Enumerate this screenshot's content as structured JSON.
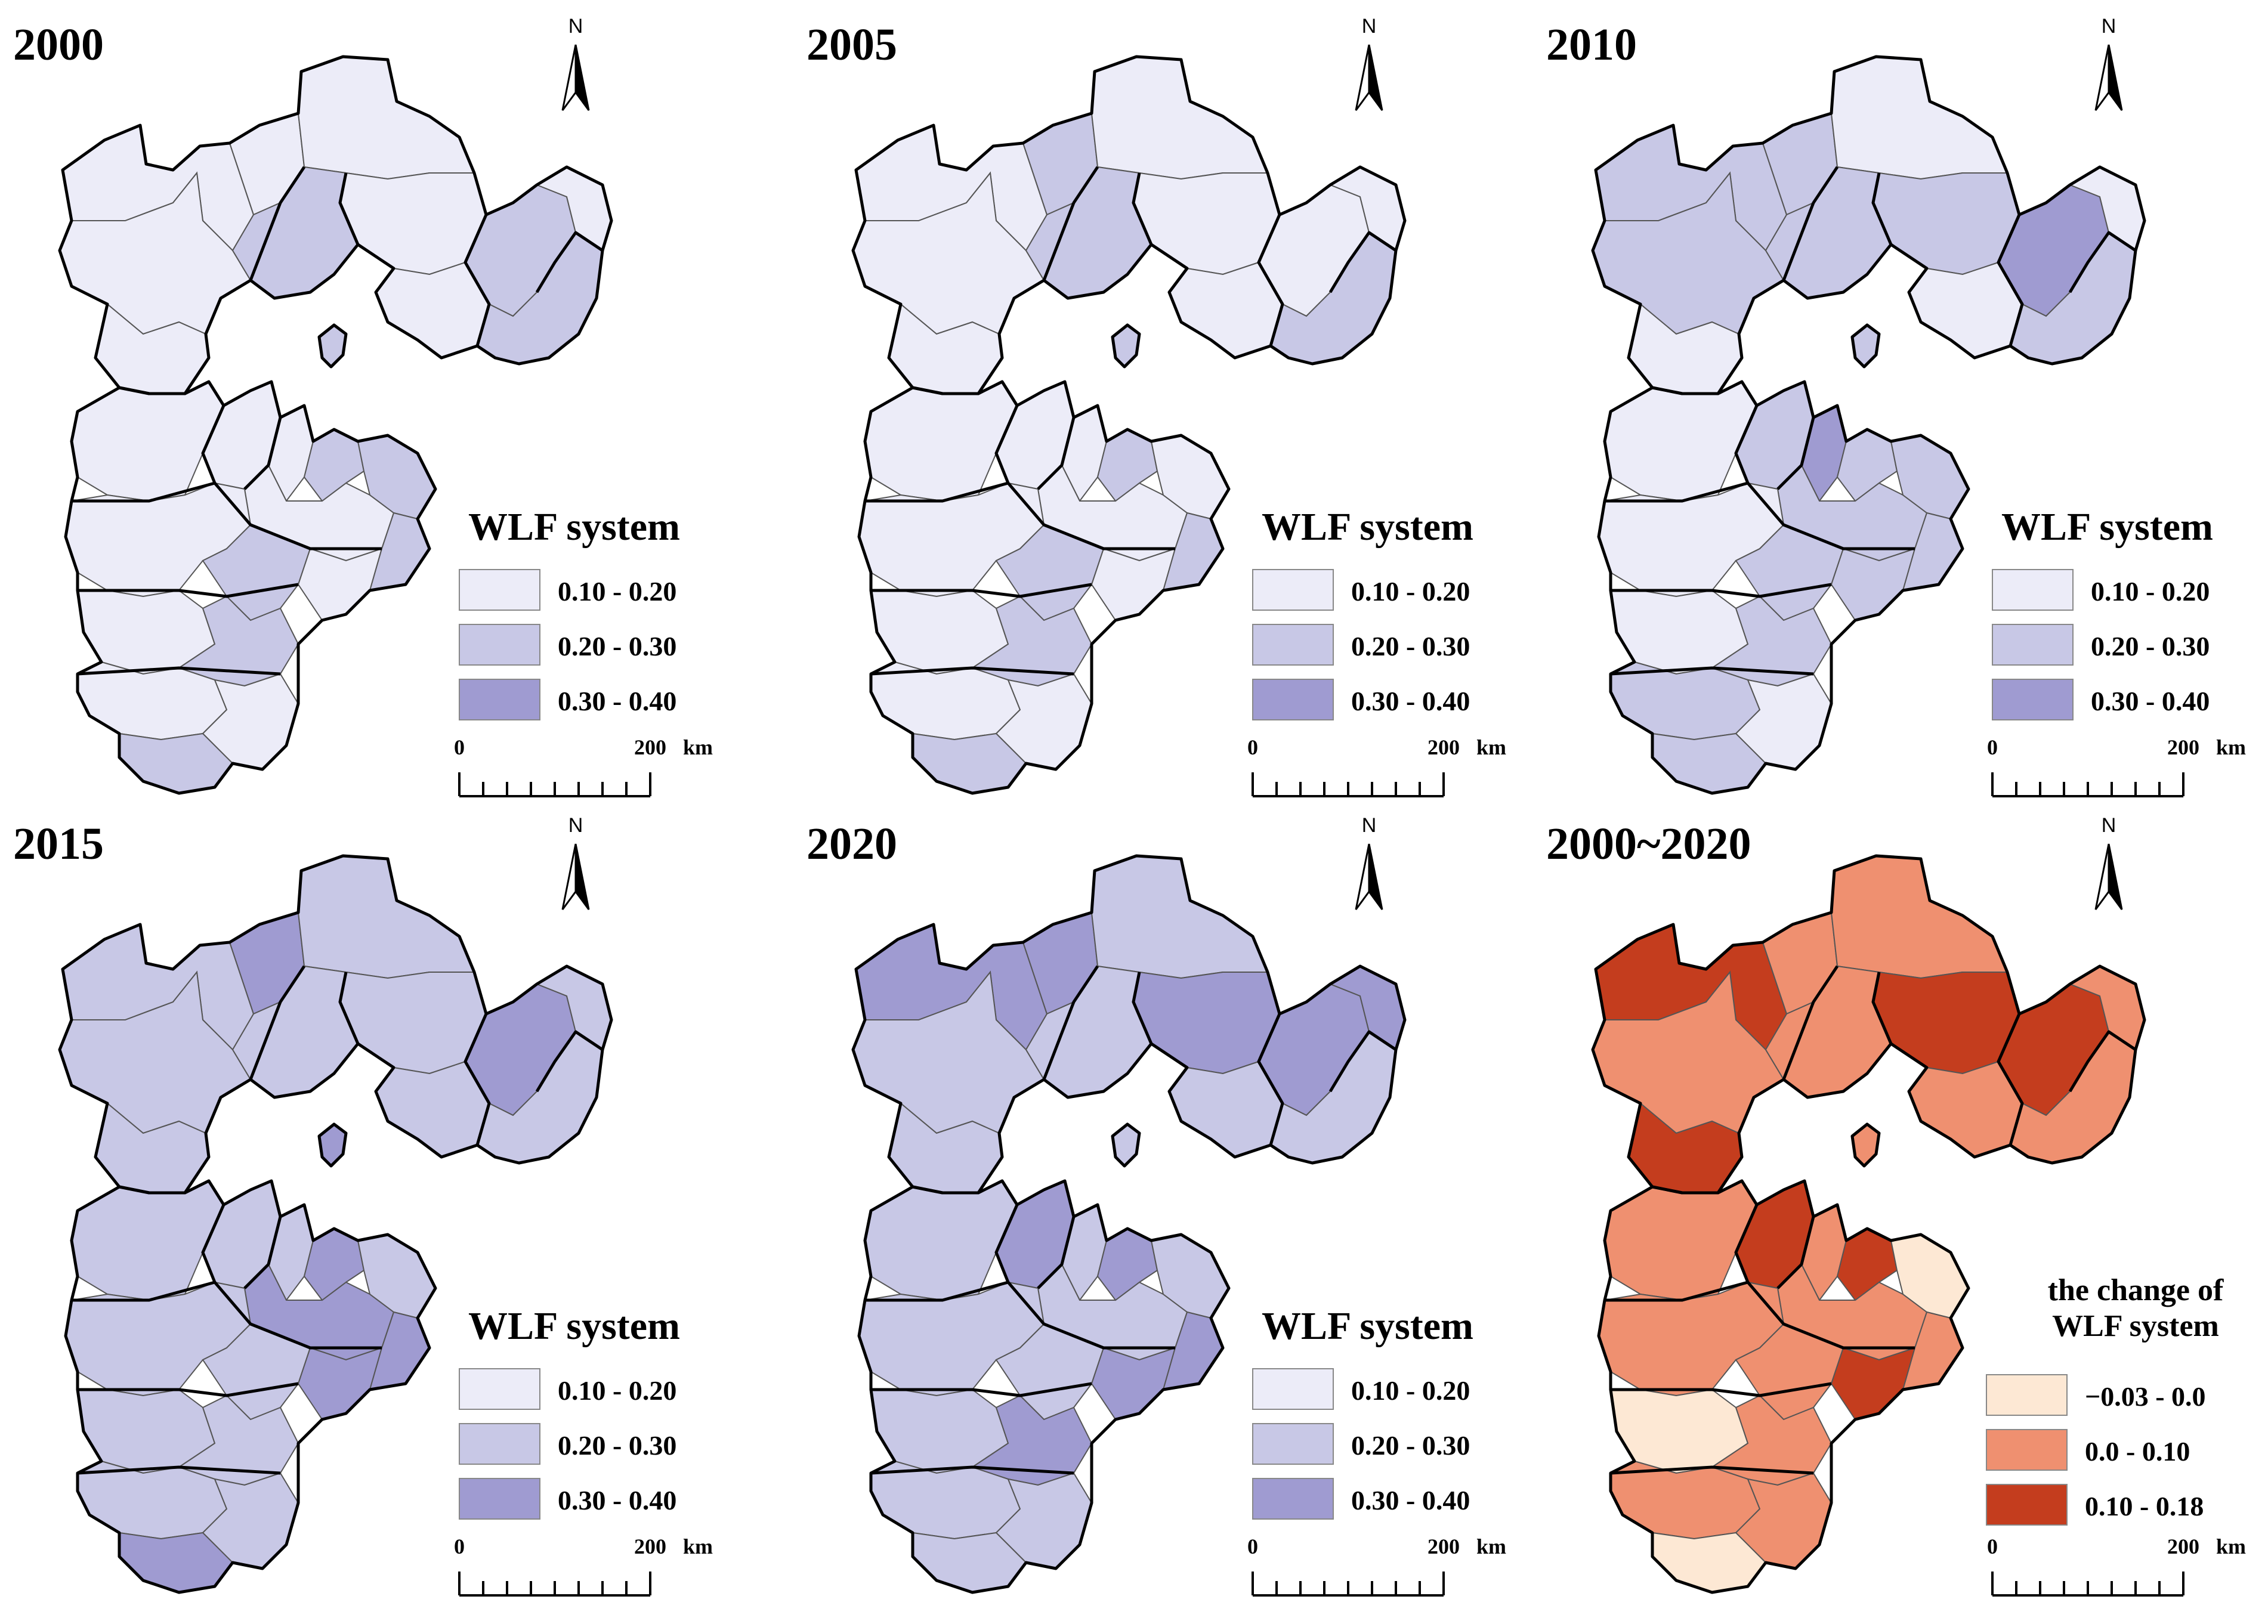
{
  "figure": {
    "scale_labels": {
      "zero": "0",
      "end": "200",
      "unit": "km"
    },
    "north_label": "N"
  },
  "legends": {
    "wlf": {
      "title": "WLF system",
      "classes": [
        {
          "label": "0.10 - 0.20",
          "color": "#ececf8"
        },
        {
          "label": "0.20 - 0.30",
          "color": "#c8c8e6"
        },
        {
          "label": "0.30 - 0.40",
          "color": "#9f9bd1"
        }
      ]
    },
    "change": {
      "title_line1": "the change of",
      "title_line2": "WLF system",
      "classes": [
        {
          "label": "−0.03 - 0.0",
          "color": "#fde8d4"
        },
        {
          "label": "0.0 - 0.10",
          "color": "#ef9070"
        },
        {
          "label": "0.10 - 0.18",
          "color": "#c43d1e"
        }
      ]
    }
  },
  "panels": [
    {
      "title": "2000",
      "kind": "wlf",
      "regions": [
        0,
        0,
        0,
        0,
        0,
        0,
        1,
        1,
        0,
        1,
        0,
        1,
        0,
        0,
        0,
        0,
        1,
        1,
        0,
        1,
        0,
        1,
        0,
        1,
        0,
        0,
        1
      ]
    },
    {
      "title": "2005",
      "kind": "wlf",
      "regions": [
        0,
        0,
        0,
        1,
        0,
        0,
        1,
        0,
        0,
        1,
        0,
        1,
        0,
        0,
        0,
        0,
        1,
        0,
        0,
        1,
        0,
        1,
        0,
        1,
        0,
        0,
        1
      ]
    },
    {
      "title": "2010",
      "kind": "wlf",
      "regions": [
        1,
        1,
        0,
        1,
        0,
        1,
        1,
        2,
        0,
        1,
        0,
        1,
        0,
        1,
        2,
        1,
        1,
        1,
        0,
        1,
        1,
        1,
        0,
        1,
        1,
        0,
        1
      ]
    },
    {
      "title": "2015",
      "kind": "wlf",
      "regions": [
        1,
        1,
        1,
        2,
        1,
        1,
        1,
        2,
        1,
        1,
        1,
        2,
        1,
        1,
        1,
        2,
        2,
        1,
        1,
        1,
        2,
        2,
        1,
        1,
        1,
        1,
        2
      ]
    },
    {
      "title": "2020",
      "kind": "wlf",
      "regions": [
        2,
        1,
        1,
        2,
        1,
        2,
        1,
        2,
        1,
        1,
        2,
        1,
        1,
        2,
        1,
        1,
        2,
        1,
        1,
        1,
        2,
        2,
        1,
        2,
        1,
        1,
        1
      ]
    },
    {
      "title": "2000~2020",
      "kind": "change",
      "regions": [
        2,
        1,
        2,
        1,
        1,
        2,
        1,
        2,
        1,
        1,
        1,
        1,
        1,
        2,
        1,
        1,
        2,
        0,
        1,
        1,
        2,
        1,
        0,
        1,
        1,
        1,
        0
      ]
    }
  ]
}
